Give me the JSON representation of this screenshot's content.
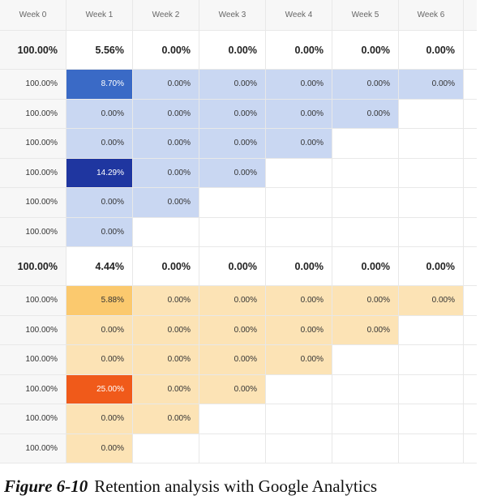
{
  "columns": [
    "Week 0",
    "Week 1",
    "Week 2",
    "Week 3",
    "Week 4",
    "Week 5",
    "Week 6"
  ],
  "colors": {
    "blue_light": "#c9d7f2",
    "blue_mid": "#3a6ac6",
    "blue_dark": "#1f36a0",
    "orange_light": "#fce3b5",
    "orange_mid": "#fbc96e",
    "orange_dark": "#f05a1a"
  },
  "blue_section": {
    "summary": [
      "100.00%",
      "5.56%",
      "0.00%",
      "0.00%",
      "0.00%",
      "0.00%",
      "0.00%"
    ],
    "rows": [
      [
        "100.00%",
        "8.70%",
        "0.00%",
        "0.00%",
        "0.00%",
        "0.00%",
        "0.00%"
      ],
      [
        "100.00%",
        "0.00%",
        "0.00%",
        "0.00%",
        "0.00%",
        "0.00%"
      ],
      [
        "100.00%",
        "0.00%",
        "0.00%",
        "0.00%",
        "0.00%"
      ],
      [
        "100.00%",
        "14.29%",
        "0.00%",
        "0.00%"
      ],
      [
        "100.00%",
        "0.00%",
        "0.00%"
      ],
      [
        "100.00%",
        "0.00%"
      ]
    ]
  },
  "orange_section": {
    "summary": [
      "100.00%",
      "4.44%",
      "0.00%",
      "0.00%",
      "0.00%",
      "0.00%",
      "0.00%"
    ],
    "rows": [
      [
        "100.00%",
        "5.88%",
        "0.00%",
        "0.00%",
        "0.00%",
        "0.00%",
        "0.00%"
      ],
      [
        "100.00%",
        "0.00%",
        "0.00%",
        "0.00%",
        "0.00%",
        "0.00%"
      ],
      [
        "100.00%",
        "0.00%",
        "0.00%",
        "0.00%",
        "0.00%"
      ],
      [
        "100.00%",
        "25.00%",
        "0.00%",
        "0.00%"
      ],
      [
        "100.00%",
        "0.00%",
        "0.00%"
      ],
      [
        "100.00%",
        "0.00%"
      ]
    ]
  },
  "caption": {
    "label": "Figure 6-10",
    "text": "Retention analysis with Google Analytics"
  }
}
